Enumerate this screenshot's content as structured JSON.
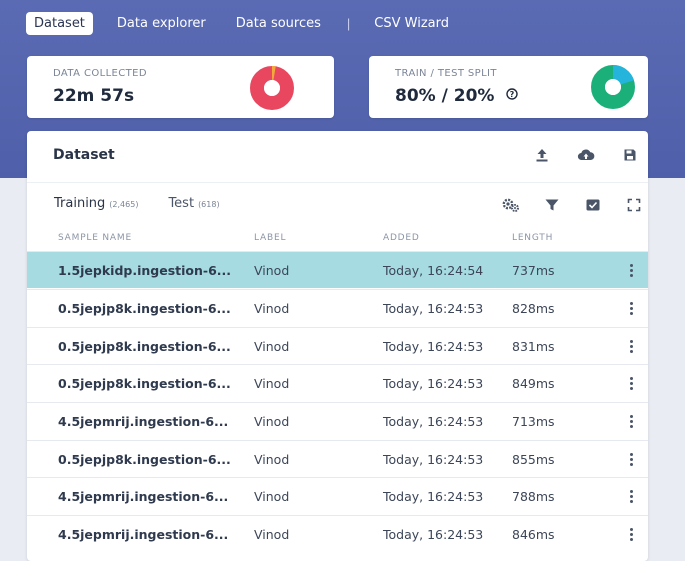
{
  "nav": {
    "tabs": [
      "Dataset",
      "Data explorer",
      "Data sources"
    ],
    "separator": "|",
    "wizard": "CSV Wizard"
  },
  "stats": {
    "collected": {
      "label": "DATA COLLECTED",
      "value": "22m 57s"
    },
    "split": {
      "label": "TRAIN / TEST SPLIT",
      "value": "80% / 20%"
    }
  },
  "colors": {
    "accent_band": "#5a6bb4",
    "donut_red": "#e8475f",
    "donut_orange": "#f2a93b",
    "donut_green": "#1bb07a",
    "donut_blue": "#24b4dc",
    "selected_row": "#a6dbe1"
  },
  "dataset": {
    "title": "Dataset",
    "header_icons": [
      "upload-icon",
      "cloud-upload-icon",
      "save-icon"
    ],
    "tabs": [
      {
        "label": "Training",
        "count": "(2,465)"
      },
      {
        "label": "Test",
        "count": "(618)"
      }
    ],
    "tool_icons": [
      "settings-icon",
      "filter-icon",
      "select-all-icon",
      "fullscreen-icon"
    ],
    "columns": [
      "SAMPLE NAME",
      "LABEL",
      "ADDED",
      "LENGTH"
    ],
    "rows": [
      {
        "name": "1.5jepkidp.ingestion-6...",
        "label": "Vinod",
        "added": "Today, 16:24:54",
        "length": "737ms"
      },
      {
        "name": "0.5jepjp8k.ingestion-6...",
        "label": "Vinod",
        "added": "Today, 16:24:53",
        "length": "828ms"
      },
      {
        "name": "0.5jepjp8k.ingestion-6...",
        "label": "Vinod",
        "added": "Today, 16:24:53",
        "length": "831ms"
      },
      {
        "name": "0.5jepjp8k.ingestion-6...",
        "label": "Vinod",
        "added": "Today, 16:24:53",
        "length": "849ms"
      },
      {
        "name": "4.5jepmrij.ingestion-6...",
        "label": "Vinod",
        "added": "Today, 16:24:53",
        "length": "713ms"
      },
      {
        "name": "0.5jepjp8k.ingestion-6...",
        "label": "Vinod",
        "added": "Today, 16:24:53",
        "length": "855ms"
      },
      {
        "name": "4.5jepmrij.ingestion-6...",
        "label": "Vinod",
        "added": "Today, 16:24:53",
        "length": "788ms"
      },
      {
        "name": "4.5jepmrij.ingestion-6...",
        "label": "Vinod",
        "added": "Today, 16:24:53",
        "length": "846ms"
      }
    ]
  }
}
